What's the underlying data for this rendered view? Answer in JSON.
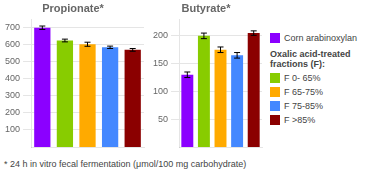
{
  "chart_data": [
    {
      "type": "bar",
      "title": "Propionate*",
      "categories": [
        "Corn arabinoxylan",
        "F 0- 65%",
        "F 65-75%",
        "F 75-85%",
        "F >85%"
      ],
      "values": [
        700,
        625,
        603,
        585,
        570
      ],
      "errors": [
        10,
        8,
        12,
        7,
        8
      ],
      "colors": [
        "#8B00FF",
        "#88CC00",
        "#FFAA00",
        "#4488FF",
        "#8B0000"
      ],
      "ylim": [
        0,
        750
      ],
      "yticks": [
        100,
        200,
        300,
        400,
        500,
        600,
        700
      ],
      "grid": true,
      "tick_labels": "y",
      "annotations": [
        "* 24 h in vitro fecal fermentation (μmol/100 mg carbohydrate)"
      ]
    },
    {
      "type": "bar",
      "title": "Butyrate*",
      "categories": [
        "Corn arabinoxylan",
        "F 0- 65%",
        "F 65-75%",
        "F 75-85%",
        "F >85%"
      ],
      "values": [
        130,
        200,
        175,
        165,
        205
      ],
      "errors": [
        5,
        5,
        5,
        5,
        4
      ],
      "colors": [
        "#8B00FF",
        "#88CC00",
        "#FFAA00",
        "#4488FF",
        "#8B0000"
      ],
      "ylim": [
        0,
        230
      ],
      "yticks": [
        50,
        100,
        150,
        200
      ],
      "grid": true,
      "tick_labels": "y",
      "legend": "right",
      "annotations": [
        "Oxalic acid-treated\nfractions (F):"
      ]
    }
  ]
}
